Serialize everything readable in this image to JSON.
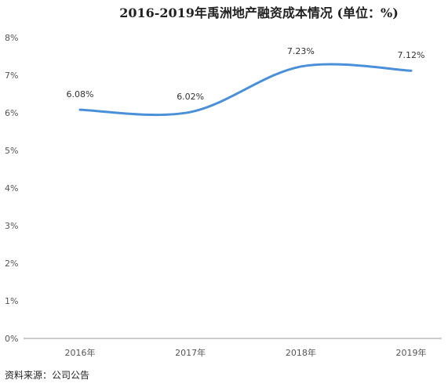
{
  "chart_data": {
    "type": "line",
    "title": "2016-2019年禹洲地产融资成本情况 (单位：%)",
    "xlabel": "",
    "ylabel": "",
    "categories": [
      "2016年",
      "2017年",
      "2018年",
      "2019年"
    ],
    "series": [
      {
        "values": [
          6.08,
          6.02,
          7.23,
          7.12
        ],
        "data_labels": [
          "6.08%",
          "6.02%",
          "7.23%",
          "7.12%"
        ],
        "color": "#4A90D9",
        "smooth": true
      }
    ],
    "ylim": [
      0,
      8
    ],
    "yticks": [
      0,
      1,
      2,
      3,
      4,
      5,
      6,
      7,
      8
    ],
    "ytick_labels": [
      "0%",
      "1%",
      "2%",
      "3%",
      "4%",
      "5%",
      "6%",
      "7%",
      "8%"
    ],
    "grid": false,
    "legend": "none"
  },
  "source_note": "资料来源：公司公告"
}
